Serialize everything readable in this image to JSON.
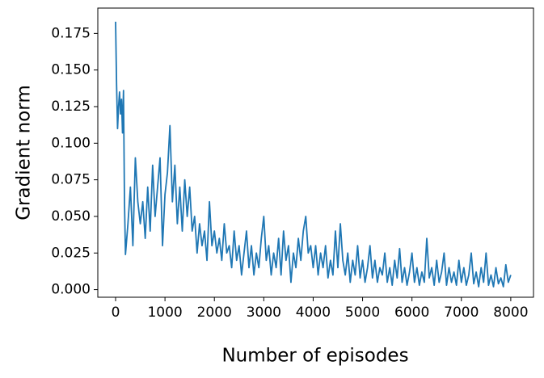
{
  "chart_data": {
    "type": "line",
    "x_label": "Number of episodes",
    "y_label": "Gradient norm",
    "xlim": [
      -360,
      8460
    ],
    "ylim": [
      -0.0052,
      0.1923
    ],
    "xticks": [
      0,
      1000,
      2000,
      3000,
      4000,
      5000,
      6000,
      7000,
      8000
    ],
    "yticks": [
      {
        "value": 0,
        "label": "0.000"
      },
      0.025,
      {
        "value": 0.05,
        "label": "0.050"
      },
      0.075,
      {
        "value": 0.1,
        "label": "0.100"
      },
      0.125,
      {
        "value": 0.15,
        "label": "0.150"
      },
      0.175
    ],
    "grid": false,
    "series": [
      {
        "color": "#1f77b4",
        "x": [
          0,
          20,
          40,
          60,
          80,
          100,
          120,
          140,
          160,
          180,
          200,
          250,
          300,
          350,
          400,
          450,
          500,
          550,
          600,
          650,
          700,
          750,
          800,
          850,
          900,
          950,
          1000,
          1050,
          1100,
          1150,
          1200,
          1250,
          1300,
          1350,
          1400,
          1450,
          1500,
          1550,
          1600,
          1650,
          1700,
          1750,
          1800,
          1850,
          1900,
          1950,
          2000,
          2050,
          2100,
          2150,
          2200,
          2250,
          2300,
          2350,
          2400,
          2450,
          2500,
          2550,
          2600,
          2650,
          2700,
          2750,
          2800,
          2850,
          2900,
          2950,
          3000,
          3050,
          3100,
          3150,
          3200,
          3250,
          3300,
          3350,
          3400,
          3450,
          3500,
          3550,
          3600,
          3650,
          3700,
          3750,
          3800,
          3850,
          3900,
          3950,
          4000,
          4050,
          4100,
          4150,
          4200,
          4250,
          4300,
          4350,
          4400,
          4450,
          4500,
          4550,
          4600,
          4650,
          4700,
          4750,
          4800,
          4850,
          4900,
          4950,
          5000,
          5050,
          5100,
          5150,
          5200,
          5250,
          5300,
          5350,
          5400,
          5450,
          5500,
          5550,
          5600,
          5650,
          5700,
          5750,
          5800,
          5850,
          5900,
          5950,
          6000,
          6050,
          6100,
          6150,
          6200,
          6250,
          6300,
          6350,
          6400,
          6450,
          6500,
          6550,
          6600,
          6650,
          6700,
          6750,
          6800,
          6850,
          6900,
          6950,
          7000,
          7050,
          7100,
          7150,
          7200,
          7250,
          7300,
          7350,
          7400,
          7450,
          7500,
          7550,
          7600,
          7650,
          7700,
          7750,
          7800,
          7850,
          7900,
          7950,
          8000
        ],
        "values": [
          0.183,
          0.14,
          0.11,
          0.125,
          0.135,
          0.12,
          0.13,
          0.107,
          0.136,
          0.06,
          0.024,
          0.045,
          0.07,
          0.03,
          0.09,
          0.06,
          0.045,
          0.06,
          0.035,
          0.07,
          0.04,
          0.085,
          0.05,
          0.07,
          0.09,
          0.03,
          0.065,
          0.08,
          0.112,
          0.06,
          0.085,
          0.045,
          0.07,
          0.04,
          0.075,
          0.05,
          0.07,
          0.04,
          0.05,
          0.025,
          0.045,
          0.03,
          0.04,
          0.02,
          0.06,
          0.03,
          0.04,
          0.025,
          0.035,
          0.02,
          0.045,
          0.025,
          0.03,
          0.015,
          0.04,
          0.02,
          0.03,
          0.01,
          0.025,
          0.04,
          0.015,
          0.03,
          0.01,
          0.025,
          0.015,
          0.035,
          0.05,
          0.02,
          0.03,
          0.01,
          0.025,
          0.015,
          0.035,
          0.01,
          0.04,
          0.02,
          0.03,
          0.005,
          0.025,
          0.015,
          0.035,
          0.02,
          0.04,
          0.05,
          0.025,
          0.03,
          0.015,
          0.03,
          0.01,
          0.025,
          0.015,
          0.03,
          0.008,
          0.02,
          0.01,
          0.04,
          0.015,
          0.045,
          0.02,
          0.01,
          0.025,
          0.005,
          0.02,
          0.01,
          0.03,
          0.008,
          0.02,
          0.005,
          0.015,
          0.03,
          0.008,
          0.02,
          0.005,
          0.015,
          0.01,
          0.025,
          0.005,
          0.015,
          0.003,
          0.02,
          0.008,
          0.028,
          0.005,
          0.015,
          0.003,
          0.012,
          0.025,
          0.005,
          0.015,
          0.003,
          0.012,
          0.005,
          0.035,
          0.008,
          0.015,
          0.003,
          0.02,
          0.005,
          0.012,
          0.025,
          0.003,
          0.015,
          0.005,
          0.012,
          0.003,
          0.02,
          0.005,
          0.015,
          0.003,
          0.01,
          0.025,
          0.004,
          0.012,
          0.002,
          0.015,
          0.005,
          0.025,
          0.003,
          0.01,
          0.002,
          0.015,
          0.004,
          0.008,
          0.002,
          0.017,
          0.005,
          0.01
        ]
      }
    ]
  }
}
